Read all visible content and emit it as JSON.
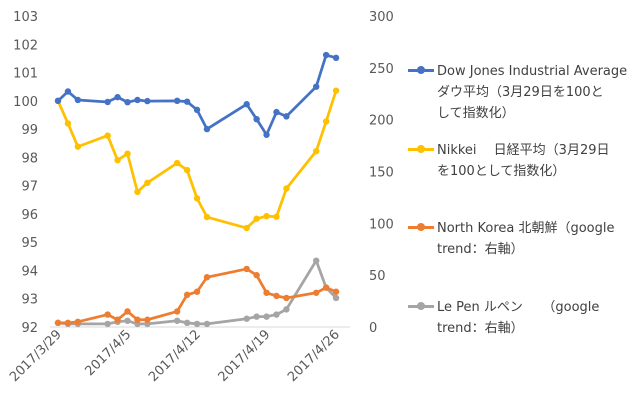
{
  "chart_data": {
    "type": "line",
    "x_labels": [
      "2017/3/29",
      "2017/4/5",
      "2017/4/12",
      "2017/4/19",
      "2017/4/26"
    ],
    "y_left_ticks": [
      "92",
      "93",
      "94",
      "95",
      "96",
      "97",
      "98",
      "99",
      "100",
      "101",
      "102",
      "103"
    ],
    "y_right_ticks": [
      "0",
      "50",
      "100",
      "150",
      "200",
      "250",
      "300"
    ],
    "ylim_left": [
      92,
      103
    ],
    "ylim_right": [
      0,
      300
    ],
    "grid": false,
    "legend_position": "right",
    "series": [
      {
        "name": "Dow Jones Industrial Average ダウ平均（3月29日を100として指数化）",
        "axis": "left",
        "color": "#4472C4",
        "points": [
          {
            "x": "2017-03-29",
            "y": 100.0
          },
          {
            "x": "2017-03-30",
            "y": 100.33
          },
          {
            "x": "2017-03-31",
            "y": 100.03
          },
          {
            "x": "2017-04-03",
            "y": 99.96
          },
          {
            "x": "2017-04-04",
            "y": 100.13
          },
          {
            "x": "2017-04-05",
            "y": 99.95
          },
          {
            "x": "2017-04-06",
            "y": 100.03
          },
          {
            "x": "2017-04-07",
            "y": 99.99
          },
          {
            "x": "2017-04-10",
            "y": 100.0
          },
          {
            "x": "2017-04-11",
            "y": 99.97
          },
          {
            "x": "2017-04-12",
            "y": 99.68
          },
          {
            "x": "2017-04-13",
            "y": 99.0
          },
          {
            "x": "2017-04-17",
            "y": 99.88
          },
          {
            "x": "2017-04-18",
            "y": 99.35
          },
          {
            "x": "2017-04-19",
            "y": 98.8
          },
          {
            "x": "2017-04-20",
            "y": 99.6
          },
          {
            "x": "2017-04-21",
            "y": 99.45
          },
          {
            "x": "2017-04-24",
            "y": 100.5
          },
          {
            "x": "2017-04-25",
            "y": 101.62
          },
          {
            "x": "2017-04-26",
            "y": 101.52
          }
        ]
      },
      {
        "name": "Nikkei　日経平均（3月29日を100として指数化）",
        "axis": "left",
        "color": "#FFC000",
        "points": [
          {
            "x": "2017-03-29",
            "y": 100.0
          },
          {
            "x": "2017-03-30",
            "y": 99.2
          },
          {
            "x": "2017-03-31",
            "y": 98.38
          },
          {
            "x": "2017-04-03",
            "y": 98.77
          },
          {
            "x": "2017-04-04",
            "y": 97.9
          },
          {
            "x": "2017-04-05",
            "y": 98.13
          },
          {
            "x": "2017-04-06",
            "y": 96.78
          },
          {
            "x": "2017-04-07",
            "y": 97.1
          },
          {
            "x": "2017-04-10",
            "y": 97.8
          },
          {
            "x": "2017-04-11",
            "y": 97.55
          },
          {
            "x": "2017-04-12",
            "y": 96.55
          },
          {
            "x": "2017-04-13",
            "y": 95.89
          },
          {
            "x": "2017-04-17",
            "y": 95.5
          },
          {
            "x": "2017-04-18",
            "y": 95.83
          },
          {
            "x": "2017-04-19",
            "y": 95.92
          },
          {
            "x": "2017-04-20",
            "y": 95.9
          },
          {
            "x": "2017-04-21",
            "y": 96.9
          },
          {
            "x": "2017-04-24",
            "y": 98.22
          },
          {
            "x": "2017-04-25",
            "y": 99.27
          },
          {
            "x": "2017-04-26",
            "y": 100.36
          }
        ]
      },
      {
        "name": "North Korea 北朝鮮（google trend：右軸）",
        "axis": "right",
        "color": "#ED7D31",
        "points": [
          {
            "x": "2017-03-29",
            "y": 4
          },
          {
            "x": "2017-03-30",
            "y": 4
          },
          {
            "x": "2017-03-31",
            "y": 5
          },
          {
            "x": "2017-04-03",
            "y": 12
          },
          {
            "x": "2017-04-04",
            "y": 7
          },
          {
            "x": "2017-04-05",
            "y": 15
          },
          {
            "x": "2017-04-06",
            "y": 7
          },
          {
            "x": "2017-04-07",
            "y": 7
          },
          {
            "x": "2017-04-10",
            "y": 15
          },
          {
            "x": "2017-04-11",
            "y": 31
          },
          {
            "x": "2017-04-12",
            "y": 34
          },
          {
            "x": "2017-04-13",
            "y": 48
          },
          {
            "x": "2017-04-17",
            "y": 56
          },
          {
            "x": "2017-04-18",
            "y": 50
          },
          {
            "x": "2017-04-19",
            "y": 33
          },
          {
            "x": "2017-04-20",
            "y": 30
          },
          {
            "x": "2017-04-21",
            "y": 28
          },
          {
            "x": "2017-04-24",
            "y": 33
          },
          {
            "x": "2017-04-25",
            "y": 38
          },
          {
            "x": "2017-04-26",
            "y": 34
          }
        ]
      },
      {
        "name": "Le Pen ルペン　　（google trend：右軸）",
        "axis": "right",
        "color": "#A5A5A5",
        "points": [
          {
            "x": "2017-03-29",
            "y": 4
          },
          {
            "x": "2017-03-30",
            "y": 3
          },
          {
            "x": "2017-03-31",
            "y": 3
          },
          {
            "x": "2017-04-03",
            "y": 3
          },
          {
            "x": "2017-04-04",
            "y": 5
          },
          {
            "x": "2017-04-05",
            "y": 6
          },
          {
            "x": "2017-04-06",
            "y": 3
          },
          {
            "x": "2017-04-07",
            "y": 3
          },
          {
            "x": "2017-04-10",
            "y": 6
          },
          {
            "x": "2017-04-11",
            "y": 4
          },
          {
            "x": "2017-04-12",
            "y": 3
          },
          {
            "x": "2017-04-13",
            "y": 3
          },
          {
            "x": "2017-04-17",
            "y": 8
          },
          {
            "x": "2017-04-18",
            "y": 10
          },
          {
            "x": "2017-04-19",
            "y": 10
          },
          {
            "x": "2017-04-20",
            "y": 12
          },
          {
            "x": "2017-04-21",
            "y": 17
          },
          {
            "x": "2017-04-24",
            "y": 64
          },
          {
            "x": "2017-04-25",
            "y": 38
          },
          {
            "x": "2017-04-26",
            "y": 28
          }
        ]
      }
    ]
  },
  "legend": {
    "items": [
      {
        "label": "Dow Jones Industrial Average\nダウ平均（3月29日を100と\nして指数化）",
        "color": "#4472C4"
      },
      {
        "label": "Nikkei　 日経平均（3月29日\nを100として指数化）",
        "color": "#FFC000"
      },
      {
        "label": "North Korea 北朝鮮（google\ntrend：右軸）",
        "color": "#ED7D31"
      },
      {
        "label": "Le Pen ルペン　　（google\ntrend：右軸）",
        "color": "#A5A5A5"
      }
    ]
  }
}
